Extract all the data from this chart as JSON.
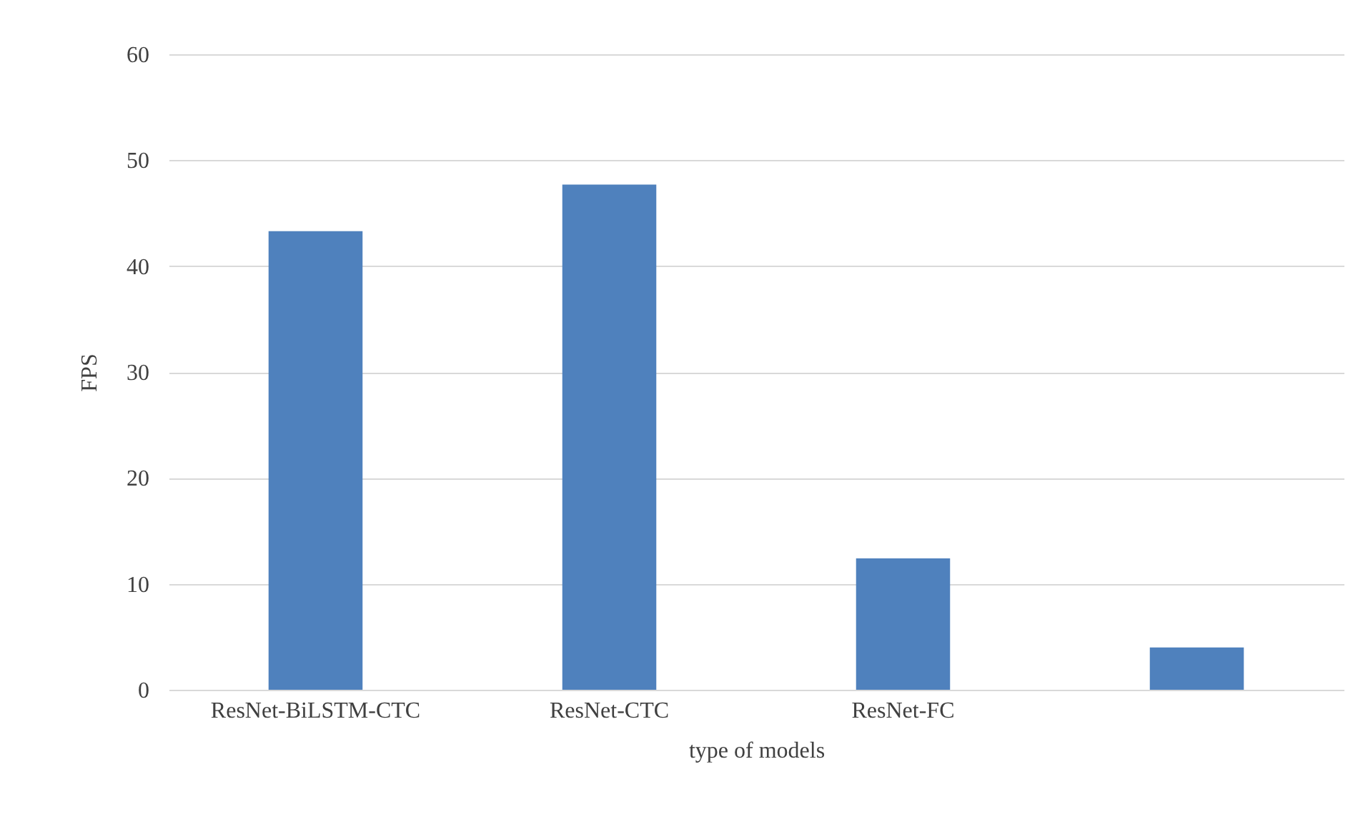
{
  "chart_data": {
    "type": "bar",
    "xlabel": "type of models",
    "ylabel": "FPS",
    "categories": [
      "ResNet-BiLSTM-CTC",
      "ResNet-CTC",
      "ResNet-FC",
      null
    ],
    "values": [
      43.3,
      47.7,
      12.4,
      4.0
    ],
    "color": "#4f81bd",
    "ylim": [
      0,
      60
    ],
    "yticks": [
      0,
      10,
      20,
      30,
      40,
      50,
      60
    ],
    "grid": "y"
  }
}
